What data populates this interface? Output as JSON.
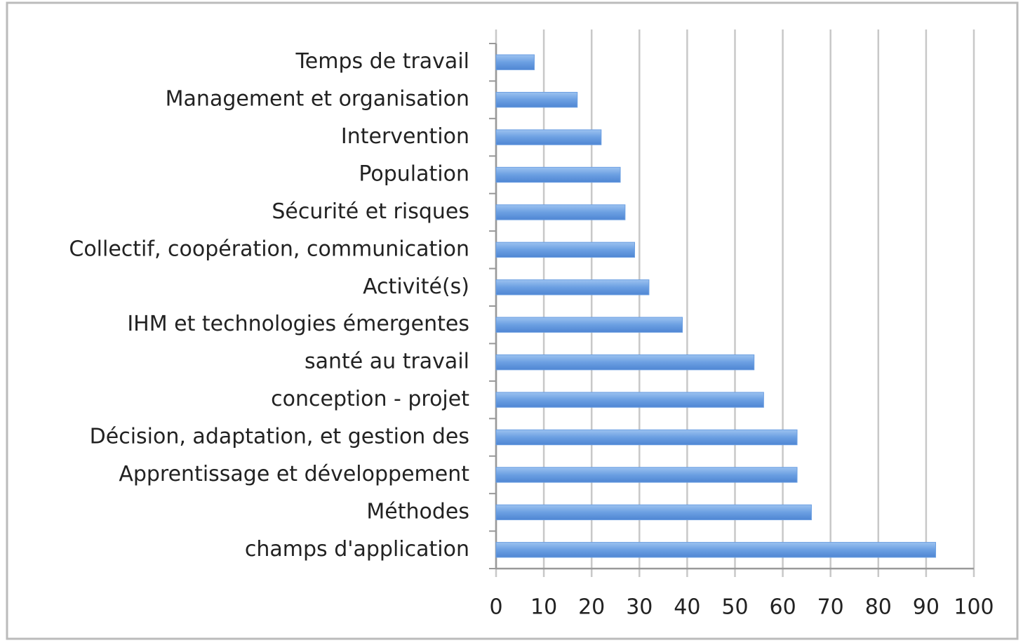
{
  "chart_data": {
    "type": "bar",
    "orientation": "horizontal",
    "categories": [
      "Temps de travail",
      "Management et organisation",
      "Intervention",
      "Population",
      "Sécurité et risques",
      "Collectif, coopération, communication",
      "Activité(s)",
      "IHM et technologies émergentes",
      "santé au travail",
      "conception - projet",
      "Décision, adaptation, et gestion des",
      "Apprentissage et développement",
      "Méthodes",
      "champs d'application"
    ],
    "values": [
      8,
      17,
      22,
      26,
      27,
      29,
      32,
      39,
      54,
      56,
      63,
      63,
      66,
      92
    ],
    "color": "#6b9fe2",
    "xlim": [
      0,
      100
    ],
    "xticks": [
      0,
      10,
      20,
      30,
      40,
      50,
      60,
      70,
      80,
      90,
      100
    ],
    "grid": true
  }
}
